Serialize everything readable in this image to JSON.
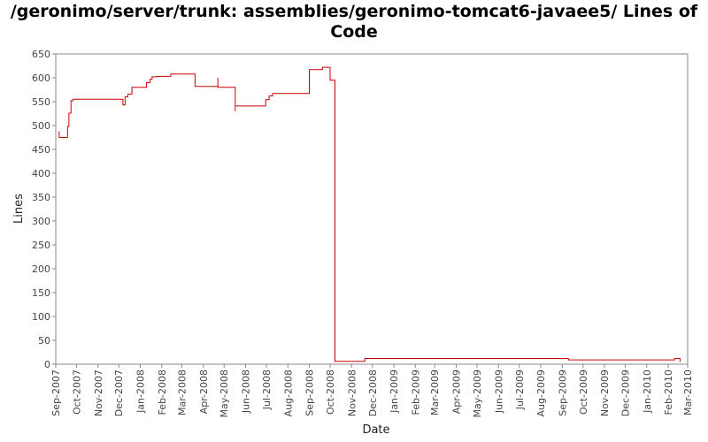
{
  "chart_data": {
    "type": "line",
    "title": "/geronimo/server/trunk: assemblies/geronimo-tomcat6-javaee5/ Lines of Code",
    "xlabel": "Date",
    "ylabel": "Lines",
    "ylim": [
      0,
      650
    ],
    "yticks": [
      0,
      50,
      100,
      150,
      200,
      250,
      300,
      350,
      400,
      450,
      500,
      550,
      600,
      650
    ],
    "xlim": [
      "2007-09-01",
      "2010-03-01"
    ],
    "xticks": [
      "Sep-2007",
      "Oct-2007",
      "Nov-2007",
      "Dec-2007",
      "Jan-2008",
      "Feb-2008",
      "Mar-2008",
      "Apr-2008",
      "May-2008",
      "Jun-2008",
      "Jul-2008",
      "Aug-2008",
      "Sep-2008",
      "Oct-2008",
      "Nov-2008",
      "Dec-2008",
      "Jan-2009",
      "Feb-2009",
      "Mar-2009",
      "Apr-2009",
      "May-2009",
      "Jun-2009",
      "Jul-2009",
      "Aug-2009",
      "Sep-2009",
      "Oct-2009",
      "Nov-2009",
      "Dec-2009",
      "Jan-2010",
      "Feb-2010",
      "Mar-2010"
    ],
    "grid": false,
    "line_color": "#cc0000",
    "series": [
      {
        "x": [
          "2007-09-06",
          "2007-09-06",
          "2007-09-18",
          "2007-09-20",
          "2007-09-23",
          "2007-09-26",
          "2007-12-07",
          "2007-12-10",
          "2007-12-14",
          "2007-12-20",
          "2008-01-10",
          "2008-01-15",
          "2008-01-18",
          "2008-01-25",
          "2008-02-14",
          "2008-02-20",
          "2008-03-20",
          "2008-04-22",
          "2008-04-22",
          "2008-04-22",
          "2008-05-17",
          "2008-05-17",
          "2008-05-17",
          "2008-06-20",
          "2008-06-30",
          "2008-07-05",
          "2008-07-10",
          "2008-08-15",
          "2008-09-01",
          "2008-09-15",
          "2008-09-20",
          "2008-10-01",
          "2008-10-01",
          "2008-10-05",
          "2008-10-08",
          "2008-11-20",
          "2008-11-20",
          "2009-09-10",
          "2009-09-10",
          "2010-02-10",
          "2010-02-10",
          "2010-02-18",
          "2010-02-18"
        ],
        "y": [
          488,
          475,
          498,
          526,
          552,
          555,
          543,
          560,
          566,
          580,
          590,
          597,
          602,
          603,
          608,
          608,
          582,
          582,
          600,
          580,
          580,
          530,
          541,
          541,
          554,
          562,
          567,
          567,
          617,
          617,
          622,
          622,
          595,
          595,
          6,
          6,
          12,
          12,
          9,
          9,
          12,
          12,
          5
        ]
      }
    ]
  }
}
